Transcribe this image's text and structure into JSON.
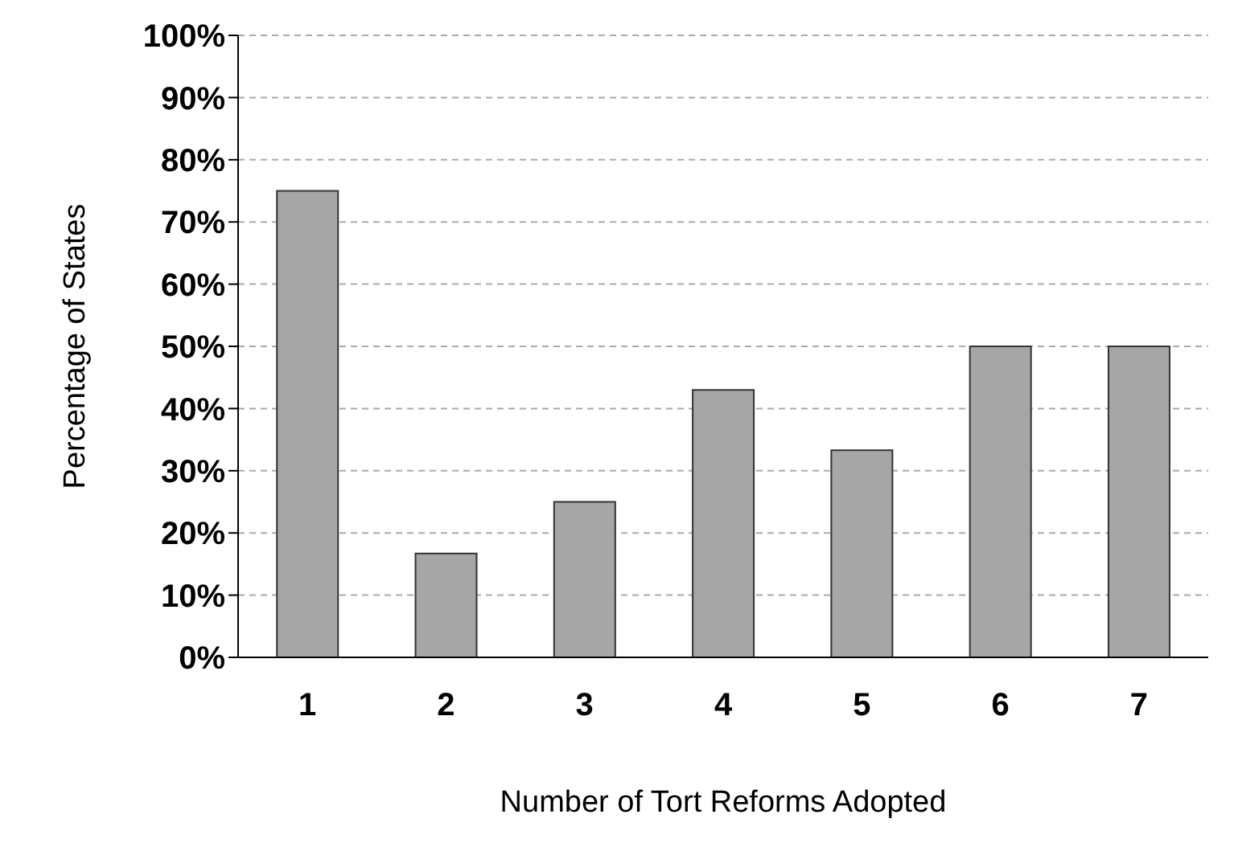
{
  "chart_data": {
    "type": "bar",
    "xlabel": "Number of Tort Reforms Adopted",
    "ylabel": "Percentage of States",
    "categories": [
      "1",
      "2",
      "3",
      "4",
      "5",
      "6",
      "7"
    ],
    "values": [
      75,
      16.7,
      25,
      43,
      33.3,
      50,
      50
    ],
    "color": "#a6a6a6",
    "ylim": [
      0,
      100
    ],
    "yticks": [
      {
        "value": 0,
        "label": "0%"
      },
      {
        "value": 10,
        "label": "10%"
      },
      {
        "value": 20,
        "label": "20%"
      },
      {
        "value": 30,
        "label": "30%"
      },
      {
        "value": 40,
        "label": "40%"
      },
      {
        "value": 50,
        "label": "50%"
      },
      {
        "value": 60,
        "label": "60%"
      },
      {
        "value": 70,
        "label": "70%"
      },
      {
        "value": 80,
        "label": "80%"
      },
      {
        "value": 90,
        "label": "90%"
      },
      {
        "value": 100,
        "label": "100%"
      }
    ],
    "grid": "y",
    "legend": false
  }
}
